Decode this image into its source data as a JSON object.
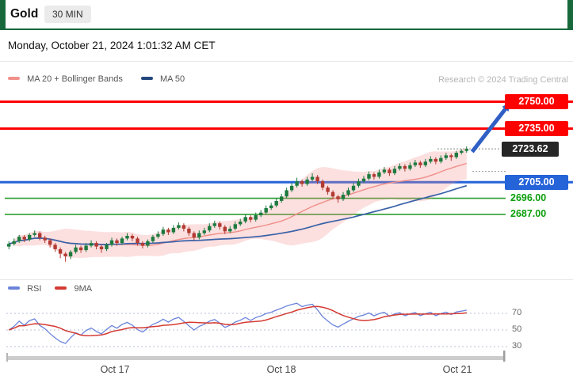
{
  "header": {
    "title": "Gold",
    "timeframe": "30 MIN"
  },
  "datetime": "Monday, October 21, 2024 1:01:32 AM CET",
  "legend": {
    "main": [
      {
        "label": "MA 20 + Bollinger Bands",
        "color": "#f2918c"
      },
      {
        "label": "MA 50",
        "color": "#24477e"
      }
    ],
    "copyright": "Research © 2024 Trading Central"
  },
  "indicator_legend": [
    {
      "label": "RSI",
      "color": "#6b84da"
    },
    {
      "label": "9MA",
      "color": "#d43a32"
    }
  ],
  "levels": [
    {
      "label": "2750.00",
      "value": 2750.0,
      "kind": "resistance",
      "line_color": "#ff0000",
      "badge_bg": "#ff0000",
      "badge_fg": "#ffffff"
    },
    {
      "label": "2735.00",
      "value": 2735.0,
      "kind": "resistance",
      "line_color": "#ff0000",
      "badge_bg": "#ff0000",
      "badge_fg": "#ffffff"
    },
    {
      "label": "2723.62",
      "value": 2723.62,
      "kind": "last-price",
      "line_color": "#888888",
      "badge_bg": "#262626",
      "badge_fg": "#ffffff"
    },
    {
      "label": "2705.00",
      "value": 2705.0,
      "kind": "support",
      "line_color": "#2563d9",
      "badge_bg": "#2563d9",
      "badge_fg": "#ffffff"
    },
    {
      "label": "2696.00",
      "value": 2696.0,
      "kind": "support",
      "line_color": "#2e9e2e",
      "text_color": "#0b9e0b",
      "text_only": true
    },
    {
      "label": "2687.00",
      "value": 2687.0,
      "kind": "support",
      "line_color": "#2e9e2e",
      "text_color": "#0b9e0b",
      "text_only": true
    }
  ],
  "arrow": {
    "direction": "up",
    "color": "#2f5fc4"
  },
  "chart_data": {
    "type": "candlestick",
    "title": "Gold 30 MIN",
    "ylim": [
      2652,
      2756
    ],
    "last_price": 2723.62,
    "aux_dotted_price": 2711,
    "candle_up_color": "#1d7a3f",
    "candle_down_color": "#b23a32",
    "overlays": [
      {
        "name": "MA 20 + Bollinger Bands",
        "line_color": "#ef8f88",
        "band_fill": "rgba(243,139,139,0.28)"
      },
      {
        "name": "MA 50",
        "line_color": "#3a62a8"
      }
    ],
    "indicators": {
      "rsi_period": 14,
      "rsi_ma": 9,
      "rsi_ticks": [
        "70",
        "50",
        "30"
      ]
    },
    "x_axis": {
      "labels": [
        "Oct 17",
        "Oct 18",
        "Oct 21"
      ]
    },
    "candles": [
      [
        2669.0,
        2672.0,
        2667.5,
        2670.5
      ],
      [
        2670.5,
        2673.5,
        2669.5,
        2672.0
      ],
      [
        2672.0,
        2675.5,
        2671.0,
        2674.5
      ],
      [
        2674.5,
        2675.5,
        2671.5,
        2673.0
      ],
      [
        2673.0,
        2676.5,
        2672.0,
        2675.5
      ],
      [
        2675.5,
        2678.0,
        2674.5,
        2676.5
      ],
      [
        2676.5,
        2677.5,
        2672.5,
        2674.0
      ],
      [
        2674.0,
        2675.0,
        2671.0,
        2672.5
      ],
      [
        2672.5,
        2673.5,
        2668.5,
        2670.0
      ],
      [
        2670.0,
        2671.0,
        2666.0,
        2667.5
      ],
      [
        2667.5,
        2668.5,
        2662.5,
        2665.0
      ],
      [
        2665.0,
        2666.0,
        2660.5,
        2663.5
      ],
      [
        2663.5,
        2667.0,
        2662.0,
        2666.0
      ],
      [
        2666.0,
        2670.0,
        2665.0,
        2668.5
      ],
      [
        2668.5,
        2669.5,
        2665.5,
        2667.0
      ],
      [
        2667.0,
        2671.0,
        2666.0,
        2669.5
      ],
      [
        2669.5,
        2672.5,
        2668.5,
        2671.0
      ],
      [
        2671.0,
        2672.0,
        2667.5,
        2669.0
      ],
      [
        2669.0,
        2670.0,
        2665.5,
        2667.5
      ],
      [
        2667.5,
        2671.0,
        2666.5,
        2670.0
      ],
      [
        2670.0,
        2674.0,
        2669.0,
        2672.5
      ],
      [
        2672.5,
        2673.5,
        2669.5,
        2671.0
      ],
      [
        2671.0,
        2674.5,
        2670.0,
        2673.5
      ],
      [
        2673.5,
        2676.5,
        2672.5,
        2675.0
      ],
      [
        2675.0,
        2676.0,
        2672.0,
        2673.5
      ],
      [
        2673.5,
        2674.5,
        2669.5,
        2671.0
      ],
      [
        2671.0,
        2672.0,
        2668.0,
        2669.5
      ],
      [
        2669.5,
        2673.0,
        2668.5,
        2672.0
      ],
      [
        2672.0,
        2675.5,
        2671.0,
        2674.5
      ],
      [
        2674.5,
        2677.5,
        2673.5,
        2676.0
      ],
      [
        2676.0,
        2680.0,
        2675.0,
        2678.5
      ],
      [
        2678.5,
        2679.5,
        2675.5,
        2677.0
      ],
      [
        2677.0,
        2681.0,
        2676.0,
        2679.5
      ],
      [
        2679.5,
        2682.5,
        2678.5,
        2681.0
      ],
      [
        2681.0,
        2682.0,
        2677.5,
        2679.0
      ],
      [
        2679.0,
        2680.0,
        2675.0,
        2676.5
      ],
      [
        2676.5,
        2677.5,
        2672.5,
        2674.0
      ],
      [
        2674.0,
        2678.0,
        2673.0,
        2676.5
      ],
      [
        2676.5,
        2679.5,
        2675.5,
        2678.0
      ],
      [
        2678.0,
        2682.0,
        2677.0,
        2680.5
      ],
      [
        2680.5,
        2683.5,
        2679.5,
        2682.0
      ],
      [
        2682.0,
        2683.0,
        2678.5,
        2680.0
      ],
      [
        2680.0,
        2681.0,
        2676.0,
        2677.5
      ],
      [
        2677.5,
        2680.5,
        2676.5,
        2679.0
      ],
      [
        2679.0,
        2683.0,
        2678.0,
        2681.5
      ],
      [
        2681.5,
        2684.5,
        2680.5,
        2683.0
      ],
      [
        2683.0,
        2687.0,
        2682.0,
        2685.5
      ],
      [
        2685.5,
        2686.5,
        2682.5,
        2684.0
      ],
      [
        2684.0,
        2688.0,
        2683.0,
        2686.5
      ],
      [
        2686.5,
        2689.5,
        2685.5,
        2688.0
      ],
      [
        2688.0,
        2692.0,
        2687.0,
        2690.5
      ],
      [
        2690.5,
        2693.5,
        2689.5,
        2692.0
      ],
      [
        2692.0,
        2696.0,
        2691.0,
        2694.5
      ],
      [
        2694.5,
        2698.5,
        2693.5,
        2697.0
      ],
      [
        2697.0,
        2702.0,
        2696.0,
        2700.5
      ],
      [
        2700.5,
        2704.5,
        2699.5,
        2703.0
      ],
      [
        2703.0,
        2707.5,
        2702.0,
        2705.5
      ],
      [
        2705.5,
        2706.5,
        2702.5,
        2704.0
      ],
      [
        2704.0,
        2708.0,
        2703.0,
        2706.5
      ],
      [
        2706.5,
        2710.0,
        2705.5,
        2708.0
      ],
      [
        2708.0,
        2709.0,
        2704.0,
        2705.5
      ],
      [
        2705.5,
        2706.5,
        2700.5,
        2702.0
      ],
      [
        2702.0,
        2703.0,
        2698.0,
        2699.5
      ],
      [
        2699.5,
        2700.5,
        2695.5,
        2697.0
      ],
      [
        2697.0,
        2698.0,
        2693.5,
        2695.5
      ],
      [
        2695.5,
        2699.5,
        2694.5,
        2698.0
      ],
      [
        2698.0,
        2702.0,
        2697.0,
        2700.5
      ],
      [
        2700.5,
        2704.5,
        2699.5,
        2703.0
      ],
      [
        2703.0,
        2707.0,
        2702.0,
        2705.5
      ],
      [
        2705.5,
        2708.5,
        2704.5,
        2707.0
      ],
      [
        2707.0,
        2711.0,
        2706.0,
        2709.5
      ],
      [
        2709.5,
        2710.5,
        2706.5,
        2708.0
      ],
      [
        2708.0,
        2712.0,
        2707.0,
        2710.5
      ],
      [
        2710.5,
        2713.5,
        2709.5,
        2712.0
      ],
      [
        2712.0,
        2713.0,
        2708.5,
        2710.0
      ],
      [
        2710.0,
        2714.0,
        2709.0,
        2712.5
      ],
      [
        2712.5,
        2715.5,
        2711.5,
        2714.0
      ],
      [
        2714.0,
        2715.0,
        2711.0,
        2712.5
      ],
      [
        2712.5,
        2716.0,
        2711.5,
        2714.5
      ],
      [
        2714.5,
        2717.5,
        2713.5,
        2716.0
      ],
      [
        2716.0,
        2717.0,
        2713.0,
        2714.5
      ],
      [
        2714.5,
        2718.0,
        2713.5,
        2716.5
      ],
      [
        2716.5,
        2719.5,
        2715.5,
        2718.0
      ],
      [
        2718.0,
        2719.0,
        2715.0,
        2716.5
      ],
      [
        2716.5,
        2720.0,
        2715.5,
        2718.5
      ],
      [
        2718.5,
        2721.5,
        2717.5,
        2720.0
      ],
      [
        2720.0,
        2721.0,
        2717.0,
        2719.0
      ],
      [
        2719.0,
        2722.5,
        2718.0,
        2721.5
      ],
      [
        2721.5,
        2723.5,
        2720.5,
        2722.5
      ],
      [
        2722.5,
        2725.0,
        2721.5,
        2723.6
      ]
    ]
  }
}
